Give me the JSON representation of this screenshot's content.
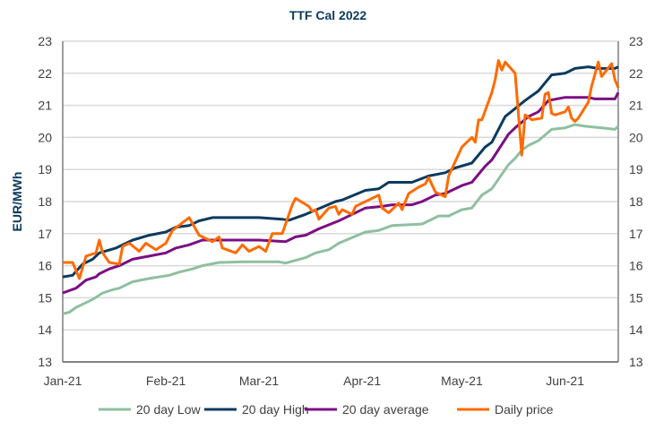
{
  "chart_data": {
    "type": "line",
    "title": "TTF Cal 2022",
    "ylabel": "EUR/MWh",
    "xlabel": "",
    "ylim": [
      13,
      23
    ],
    "yticks": [
      13,
      14,
      15,
      16,
      17,
      18,
      19,
      20,
      21,
      22,
      23
    ],
    "secondary_y_axis": true,
    "xlim": [
      "2021-01-01",
      "2021-06-17"
    ],
    "xticks": [
      {
        "date": "2021-01-01",
        "label": "Jan-21"
      },
      {
        "date": "2021-02-01",
        "label": "Feb-21"
      },
      {
        "date": "2021-03-01",
        "label": "Mar-21"
      },
      {
        "date": "2021-04-01",
        "label": "Apr-21"
      },
      {
        "date": "2021-05-01",
        "label": "May-21"
      },
      {
        "date": "2021-06-01",
        "label": "Jun-21"
      }
    ],
    "grid": "horizontal",
    "legend_position": "bottom",
    "series": [
      {
        "name": "20 day Low",
        "color": "#8fbfa0",
        "points": [
          [
            "2021-01-01",
            14.5
          ],
          [
            "2021-01-03",
            14.55
          ],
          [
            "2021-01-05",
            14.7
          ],
          [
            "2021-01-08",
            14.85
          ],
          [
            "2021-01-10",
            14.95
          ],
          [
            "2021-01-13",
            15.15
          ],
          [
            "2021-01-16",
            15.25
          ],
          [
            "2021-01-18",
            15.3
          ],
          [
            "2021-01-22",
            15.5
          ],
          [
            "2021-01-27",
            15.6
          ],
          [
            "2021-02-02",
            15.7
          ],
          [
            "2021-02-05",
            15.8
          ],
          [
            "2021-02-09",
            15.9
          ],
          [
            "2021-02-12",
            16.0
          ],
          [
            "2021-02-17",
            16.1
          ],
          [
            "2021-02-24",
            16.12
          ],
          [
            "2021-03-07",
            16.12
          ],
          [
            "2021-03-09",
            16.08
          ],
          [
            "2021-03-15",
            16.25
          ],
          [
            "2021-03-18",
            16.4
          ],
          [
            "2021-03-22",
            16.5
          ],
          [
            "2021-03-25",
            16.7
          ],
          [
            "2021-04-02",
            17.05
          ],
          [
            "2021-04-06",
            17.1
          ],
          [
            "2021-04-10",
            17.25
          ],
          [
            "2021-04-19",
            17.3
          ],
          [
            "2021-04-24",
            17.55
          ],
          [
            "2021-04-27",
            17.55
          ],
          [
            "2021-05-01",
            17.75
          ],
          [
            "2021-05-04",
            17.8
          ],
          [
            "2021-05-07",
            18.2
          ],
          [
            "2021-05-10",
            18.4
          ],
          [
            "2021-05-15",
            19.15
          ],
          [
            "2021-05-17",
            19.35
          ],
          [
            "2021-05-19",
            19.6
          ],
          [
            "2021-05-21",
            19.75
          ],
          [
            "2021-05-24",
            19.9
          ],
          [
            "2021-05-28",
            20.25
          ],
          [
            "2021-06-01",
            20.3
          ],
          [
            "2021-06-04",
            20.4
          ],
          [
            "2021-06-07",
            20.35
          ],
          [
            "2021-06-12",
            20.3
          ],
          [
            "2021-06-16",
            20.25
          ],
          [
            "2021-06-17",
            20.35
          ]
        ]
      },
      {
        "name": "20 day High",
        "color": "#0b3a5e",
        "points": [
          [
            "2021-01-01",
            15.65
          ],
          [
            "2021-01-04",
            15.7
          ],
          [
            "2021-01-07",
            16.05
          ],
          [
            "2021-01-10",
            16.2
          ],
          [
            "2021-01-12",
            16.4
          ],
          [
            "2021-01-17",
            16.55
          ],
          [
            "2021-01-22",
            16.8
          ],
          [
            "2021-01-27",
            16.95
          ],
          [
            "2021-02-01",
            17.05
          ],
          [
            "2021-02-04",
            17.2
          ],
          [
            "2021-02-08",
            17.25
          ],
          [
            "2021-02-11",
            17.4
          ],
          [
            "2021-02-15",
            17.5
          ],
          [
            "2021-03-01",
            17.5
          ],
          [
            "2021-03-08",
            17.45
          ],
          [
            "2021-03-10",
            17.42
          ],
          [
            "2021-03-15",
            17.6
          ],
          [
            "2021-03-24",
            18.0
          ],
          [
            "2021-03-26",
            18.05
          ],
          [
            "2021-04-02",
            18.35
          ],
          [
            "2021-04-06",
            18.4
          ],
          [
            "2021-04-09",
            18.6
          ],
          [
            "2021-04-16",
            18.6
          ],
          [
            "2021-04-21",
            18.8
          ],
          [
            "2021-04-26",
            18.9
          ],
          [
            "2021-04-29",
            19.05
          ],
          [
            "2021-05-04",
            19.2
          ],
          [
            "2021-05-08",
            19.7
          ],
          [
            "2021-05-10",
            19.85
          ],
          [
            "2021-05-14",
            20.65
          ],
          [
            "2021-05-17",
            20.9
          ],
          [
            "2021-05-20",
            21.15
          ],
          [
            "2021-05-24",
            21.45
          ],
          [
            "2021-05-28",
            21.95
          ],
          [
            "2021-06-01",
            22.0
          ],
          [
            "2021-06-04",
            22.15
          ],
          [
            "2021-06-08",
            22.2
          ],
          [
            "2021-06-11",
            22.15
          ],
          [
            "2021-06-16",
            22.15
          ],
          [
            "2021-06-17",
            22.2
          ]
        ]
      },
      {
        "name": "20 day average",
        "color": "#7b0f82",
        "points": [
          [
            "2021-01-01",
            15.15
          ],
          [
            "2021-01-05",
            15.3
          ],
          [
            "2021-01-08",
            15.55
          ],
          [
            "2021-01-11",
            15.65
          ],
          [
            "2021-01-12",
            15.75
          ],
          [
            "2021-01-15",
            15.9
          ],
          [
            "2021-01-18",
            16.0
          ],
          [
            "2021-01-22",
            16.2
          ],
          [
            "2021-01-27",
            16.3
          ],
          [
            "2021-02-01",
            16.4
          ],
          [
            "2021-02-04",
            16.55
          ],
          [
            "2021-02-08",
            16.65
          ],
          [
            "2021-02-12",
            16.8
          ],
          [
            "2021-02-20",
            16.8
          ],
          [
            "2021-03-01",
            16.8
          ],
          [
            "2021-03-09",
            16.75
          ],
          [
            "2021-03-12",
            16.9
          ],
          [
            "2021-03-15",
            16.95
          ],
          [
            "2021-03-19",
            17.15
          ],
          [
            "2021-03-25",
            17.4
          ],
          [
            "2021-04-02",
            17.8
          ],
          [
            "2021-04-07",
            17.85
          ],
          [
            "2021-04-10",
            17.9
          ],
          [
            "2021-04-16",
            17.9
          ],
          [
            "2021-04-19",
            18.0
          ],
          [
            "2021-04-23",
            18.2
          ],
          [
            "2021-04-26",
            18.25
          ],
          [
            "2021-05-01",
            18.5
          ],
          [
            "2021-05-04",
            18.6
          ],
          [
            "2021-05-08",
            19.1
          ],
          [
            "2021-05-10",
            19.3
          ],
          [
            "2021-05-15",
            20.1
          ],
          [
            "2021-05-17",
            20.3
          ],
          [
            "2021-05-21",
            20.65
          ],
          [
            "2021-05-24",
            20.8
          ],
          [
            "2021-05-27",
            21.15
          ],
          [
            "2021-06-01",
            21.25
          ],
          [
            "2021-06-08",
            21.25
          ],
          [
            "2021-06-10",
            21.2
          ],
          [
            "2021-06-16",
            21.2
          ],
          [
            "2021-06-17",
            21.4
          ]
        ]
      },
      {
        "name": "Daily price",
        "color": "#ff6a00",
        "points": [
          [
            "2021-01-01",
            16.1
          ],
          [
            "2021-01-04",
            16.1
          ],
          [
            "2021-01-06",
            15.6
          ],
          [
            "2021-01-08",
            16.3
          ],
          [
            "2021-01-11",
            16.4
          ],
          [
            "2021-01-12",
            16.8
          ],
          [
            "2021-01-13",
            16.4
          ],
          [
            "2021-01-15",
            16.1
          ],
          [
            "2021-01-18",
            16.05
          ],
          [
            "2021-01-19",
            16.6
          ],
          [
            "2021-01-21",
            16.7
          ],
          [
            "2021-01-24",
            16.45
          ],
          [
            "2021-01-26",
            16.7
          ],
          [
            "2021-01-29",
            16.5
          ],
          [
            "2021-02-01",
            16.7
          ],
          [
            "2021-02-03",
            17.1
          ],
          [
            "2021-02-08",
            17.5
          ],
          [
            "2021-02-11",
            16.95
          ],
          [
            "2021-02-15",
            16.75
          ],
          [
            "2021-02-17",
            16.9
          ],
          [
            "2021-02-18",
            16.55
          ],
          [
            "2021-02-22",
            16.4
          ],
          [
            "2021-02-24",
            16.65
          ],
          [
            "2021-02-26",
            16.45
          ],
          [
            "2021-03-01",
            16.6
          ],
          [
            "2021-03-03",
            16.45
          ],
          [
            "2021-03-05",
            17.0
          ],
          [
            "2021-03-08",
            17.0
          ],
          [
            "2021-03-11",
            17.9
          ],
          [
            "2021-03-12",
            18.1
          ],
          [
            "2021-03-16",
            17.85
          ],
          [
            "2021-03-17",
            17.7
          ],
          [
            "2021-03-18",
            17.75
          ],
          [
            "2021-03-19",
            17.45
          ],
          [
            "2021-03-22",
            17.8
          ],
          [
            "2021-03-24",
            17.85
          ],
          [
            "2021-03-25",
            17.6
          ],
          [
            "2021-03-26",
            17.75
          ],
          [
            "2021-03-29",
            17.6
          ],
          [
            "2021-03-30",
            17.85
          ],
          [
            "2021-04-06",
            18.2
          ],
          [
            "2021-04-07",
            17.8
          ],
          [
            "2021-04-09",
            17.65
          ],
          [
            "2021-04-12",
            17.95
          ],
          [
            "2021-04-13",
            17.75
          ],
          [
            "2021-04-15",
            18.25
          ],
          [
            "2021-04-18",
            18.45
          ],
          [
            "2021-04-20",
            18.55
          ],
          [
            "2021-04-21",
            18.75
          ],
          [
            "2021-04-23",
            18.3
          ],
          [
            "2021-04-26",
            18.15
          ],
          [
            "2021-04-27",
            18.8
          ],
          [
            "2021-05-01",
            19.7
          ],
          [
            "2021-05-04",
            20.0
          ],
          [
            "2021-05-05",
            19.85
          ],
          [
            "2021-05-06",
            20.55
          ],
          [
            "2021-05-07",
            20.55
          ],
          [
            "2021-05-10",
            21.4
          ],
          [
            "2021-05-11",
            21.8
          ],
          [
            "2021-05-12",
            22.4
          ],
          [
            "2021-05-13",
            22.1
          ],
          [
            "2021-05-14",
            22.35
          ],
          [
            "2021-05-17",
            22.0
          ],
          [
            "2021-05-19",
            19.45
          ],
          [
            "2021-05-20",
            20.7
          ],
          [
            "2021-05-22",
            20.55
          ],
          [
            "2021-05-25",
            20.6
          ],
          [
            "2021-05-26",
            21.35
          ],
          [
            "2021-05-27",
            21.4
          ],
          [
            "2021-05-28",
            20.75
          ],
          [
            "2021-05-29",
            20.7
          ],
          [
            "2021-06-01",
            20.8
          ],
          [
            "2021-06-02",
            20.95
          ],
          [
            "2021-06-03",
            20.6
          ],
          [
            "2021-06-04",
            20.5
          ],
          [
            "2021-06-05",
            20.6
          ],
          [
            "2021-06-08",
            21.1
          ],
          [
            "2021-06-09",
            21.6
          ],
          [
            "2021-06-11",
            22.35
          ],
          [
            "2021-06-12",
            21.9
          ],
          [
            "2021-06-15",
            22.3
          ],
          [
            "2021-06-16",
            21.8
          ],
          [
            "2021-06-17",
            21.55
          ]
        ]
      }
    ]
  }
}
